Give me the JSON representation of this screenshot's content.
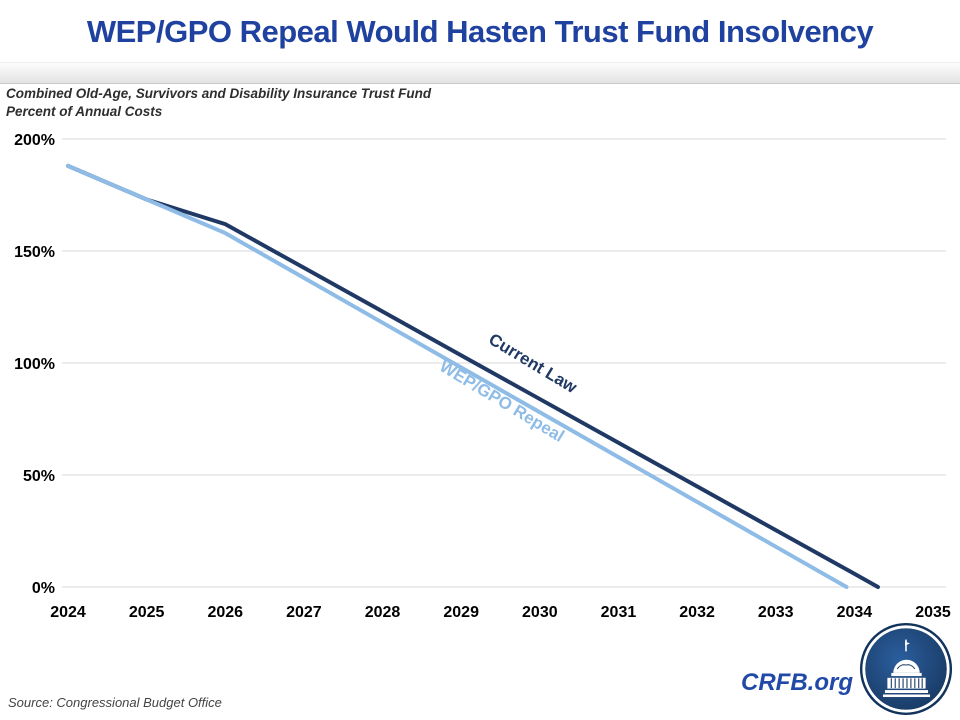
{
  "header": {
    "title": "WEP/GPO Repeal Would Hasten Trust Fund Insolvency"
  },
  "subtitle": {
    "line1": "Combined Old-Age, Survivors and Disability Insurance Trust Fund",
    "line2": "Percent of Annual Costs"
  },
  "chart_data": {
    "type": "line",
    "title": "WEP/GPO Repeal Would Hasten Trust Fund Insolvency",
    "subtitle_line1": "Combined Old-Age, Survivors and Disability Insurance Trust Fund",
    "subtitle_line2": "Percent of Annual Costs",
    "xlim": [
      2024,
      2035
    ],
    "ylim": [
      0,
      200
    ],
    "xticks": [
      2024,
      2025,
      2026,
      2027,
      2028,
      2029,
      2030,
      2031,
      2032,
      2033,
      2034,
      2035
    ],
    "yticks": [
      0,
      50,
      100,
      150,
      200
    ],
    "ytick_suffix": "%",
    "grid": "horizontal",
    "legend": "inline-line-labels",
    "series": [
      {
        "name": "Current Law",
        "color": "#1F3864",
        "points": [
          [
            2024,
            188
          ],
          [
            2025,
            173
          ],
          [
            2026,
            162
          ],
          [
            2027,
            142.5
          ],
          [
            2028,
            123
          ],
          [
            2029,
            103.4
          ],
          [
            2030,
            83.9
          ],
          [
            2031,
            64.4
          ],
          [
            2032,
            44.9
          ],
          [
            2033,
            25.4
          ],
          [
            2034,
            5.9
          ],
          [
            2034.3,
            0
          ]
        ]
      },
      {
        "name": "WEP/GPO Repeal",
        "color": "#8FBCE6",
        "points": [
          [
            2024,
            188
          ],
          [
            2025,
            173
          ],
          [
            2026,
            158
          ],
          [
            2027,
            138
          ],
          [
            2028,
            118
          ],
          [
            2029,
            98
          ],
          [
            2030,
            78
          ],
          [
            2031,
            58
          ],
          [
            2032,
            38
          ],
          [
            2033,
            18
          ],
          [
            2033.9,
            0
          ]
        ]
      }
    ]
  },
  "footer": {
    "source": "Source: Congressional Budget Office",
    "brand": "CRFB.org"
  },
  "colors": {
    "title_blue": "#1F419F",
    "gridline": "#D9D9D9",
    "tick_label": "#000000",
    "logo_navy": "#17375E"
  },
  "icons": {
    "logo": "capitol-dome-logo"
  }
}
